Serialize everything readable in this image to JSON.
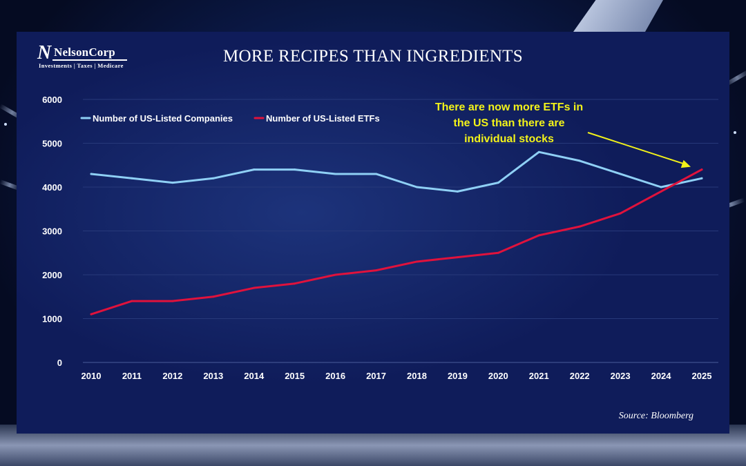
{
  "brand": {
    "mark": "N",
    "name": "NelsonCorp",
    "tagline": "Investments | Taxes | Medicare"
  },
  "source": "Source: Bloomberg",
  "colors": {
    "companies": "#8fd0f5",
    "etfs": "#e0123c",
    "annotation": "#f2f21a",
    "panel": "#0f1c5a"
  },
  "chart_data": {
    "type": "line",
    "title": "MORE RECIPES THAN INGREDIENTS",
    "xlabel": "",
    "ylabel": "",
    "x": [
      "2010",
      "2011",
      "2012",
      "2013",
      "2014",
      "2015",
      "2016",
      "2017",
      "2018",
      "2019",
      "2020",
      "2021",
      "2022",
      "2023",
      "2024",
      "2025"
    ],
    "ylim": [
      0,
      6000
    ],
    "yticks": [
      "0",
      "1000",
      "2000",
      "3000",
      "4000",
      "5000",
      "6000"
    ],
    "grid": true,
    "legend_position": "top-left",
    "series": [
      {
        "name": "Number of US-Listed Companies",
        "color": "#8fd0f5",
        "values": [
          4300,
          4200,
          4100,
          4200,
          4400,
          4400,
          4300,
          4300,
          4000,
          3900,
          4100,
          4800,
          4600,
          4300,
          4000,
          4200
        ]
      },
      {
        "name": "Number of US-Listed ETFs",
        "color": "#e0123c",
        "values": [
          1100,
          1400,
          1400,
          1500,
          1700,
          1800,
          2000,
          2100,
          2300,
          2400,
          2500,
          2900,
          3100,
          3400,
          3900,
          4400
        ]
      }
    ],
    "annotation": {
      "lines": [
        "There are now more ETFs in",
        "the US than there are",
        "individual stocks"
      ],
      "points_to": {
        "x": "2025",
        "y": 4400
      }
    }
  }
}
